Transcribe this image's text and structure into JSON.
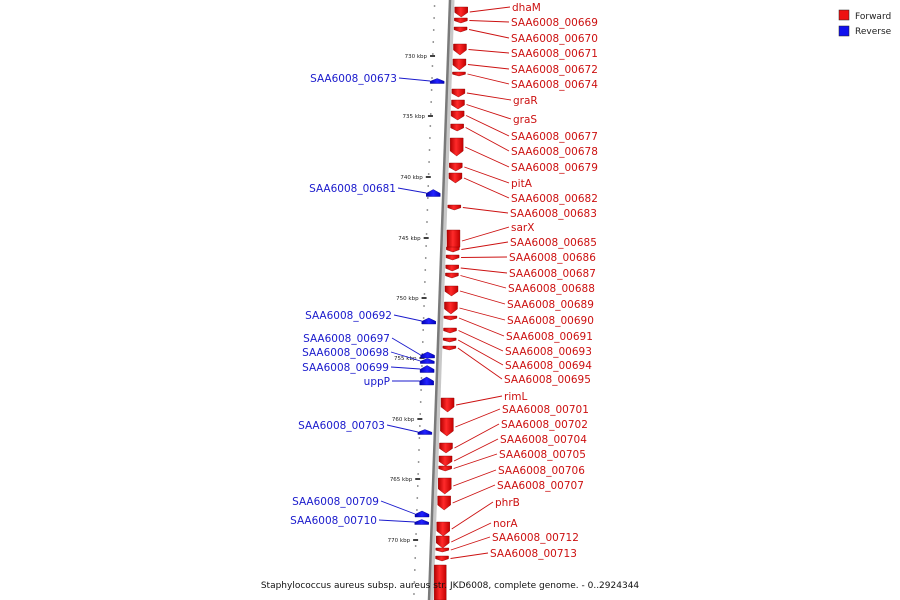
{
  "caption": "Staphylococcus aureus subsp. aureus str. JKD6008, complete genome. - 0..2924344",
  "legend": {
    "forward": {
      "label": "Forward",
      "color": "#ee1111"
    },
    "reverse": {
      "label": "Reverse",
      "color": "#1111ee"
    }
  },
  "ticks": [
    "730 kbp",
    "735 kbp",
    "740 kbp",
    "745 kbp",
    "750 kbp",
    "755 kbp",
    "760 kbp",
    "765 kbp",
    "770 kbp"
  ],
  "forward_genes": [
    "dhaM",
    "SAA6008_00669",
    "SAA6008_00670",
    "SAA6008_00671",
    "SAA6008_00672",
    "SAA6008_00674",
    "graR",
    "graS",
    "SAA6008_00677",
    "SAA6008_00678",
    "SAA6008_00679",
    "pitA",
    "SAA6008_00682",
    "SAA6008_00683",
    "sarX",
    "SAA6008_00685",
    "SAA6008_00686",
    "SAA6008_00687",
    "SAA6008_00688",
    "SAA6008_00689",
    "SAA6008_00690",
    "SAA6008_00691",
    "SAA6008_00693",
    "SAA6008_00694",
    "SAA6008_00695",
    "rimL",
    "SAA6008_00701",
    "SAA6008_00702",
    "SAA6008_00704",
    "SAA6008_00705",
    "SAA6008_00706",
    "SAA6008_00707",
    "phrB",
    "norA",
    "SAA6008_00712",
    "SAA6008_00713"
  ],
  "reverse_genes": [
    "SAA6008_00673",
    "SAA6008_00681",
    "SAA6008_00692",
    "SAA6008_00697",
    "SAA6008_00698",
    "SAA6008_00699",
    "uppP",
    "SAA6008_00703",
    "SAA6008_00709",
    "SAA6008_00710"
  ]
}
